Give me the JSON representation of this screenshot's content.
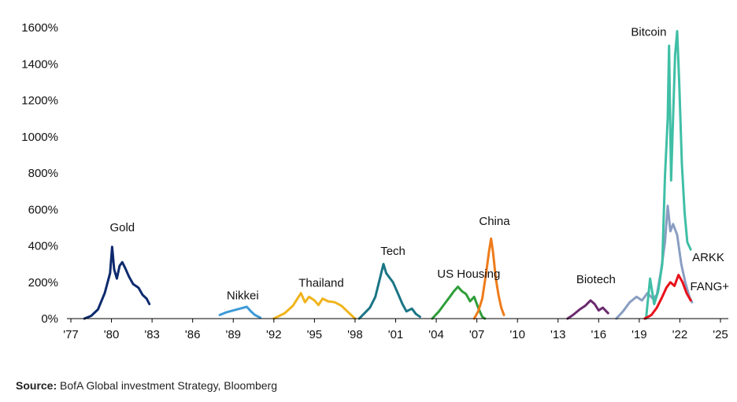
{
  "chart_data": {
    "type": "line",
    "x_tick_labels": [
      "'77",
      "'80",
      "'83",
      "'86",
      "'89",
      "'92",
      "'95",
      "'98",
      "'01",
      "'04",
      "'07",
      "'10",
      "'13",
      "'16",
      "'19",
      "'22",
      "'25"
    ],
    "y_tick_labels": [
      "0%",
      "200%",
      "400%",
      "600%",
      "800%",
      "1000%",
      "1200%",
      "1400%",
      "1600%"
    ],
    "xlim": [
      1977,
      2025
    ],
    "ylim": [
      0,
      1600
    ],
    "grid": false,
    "series": [
      {
        "name": "Gold",
        "color": "#0e2a6e",
        "label_at": [
          1980.8,
          480
        ],
        "points": [
          [
            1978,
            0
          ],
          [
            1978.5,
            15
          ],
          [
            1979,
            50
          ],
          [
            1979.5,
            140
          ],
          [
            1979.9,
            250
          ],
          [
            1980.05,
            395
          ],
          [
            1980.2,
            270
          ],
          [
            1980.4,
            220
          ],
          [
            1980.6,
            290
          ],
          [
            1980.8,
            310
          ],
          [
            1981,
            280
          ],
          [
            1981.3,
            230
          ],
          [
            1981.6,
            190
          ],
          [
            1982,
            170
          ],
          [
            1982.3,
            130
          ],
          [
            1982.6,
            110
          ],
          [
            1982.8,
            80
          ]
        ]
      },
      {
        "name": "Nikkei",
        "color": "#3d9ad8",
        "label_at": [
          1989.7,
          105
        ],
        "points": [
          [
            1988,
            20
          ],
          [
            1988.5,
            35
          ],
          [
            1989,
            45
          ],
          [
            1989.5,
            55
          ],
          [
            1990,
            65
          ],
          [
            1990.3,
            40
          ],
          [
            1990.6,
            20
          ],
          [
            1991,
            5
          ]
        ]
      },
      {
        "name": "Thailand",
        "color": "#f0b41c",
        "label_at": [
          1995.5,
          175
        ],
        "points": [
          [
            1992,
            0
          ],
          [
            1992.8,
            30
          ],
          [
            1993.4,
            70
          ],
          [
            1994,
            140
          ],
          [
            1994.3,
            90
          ],
          [
            1994.6,
            120
          ],
          [
            1995,
            100
          ],
          [
            1995.3,
            75
          ],
          [
            1995.6,
            110
          ],
          [
            1996,
            95
          ],
          [
            1996.5,
            90
          ],
          [
            1997,
            70
          ],
          [
            1997.5,
            35
          ],
          [
            1998,
            0
          ]
        ]
      },
      {
        "name": "Tech",
        "color": "#1a7585",
        "label_at": [
          2000.8,
          350
        ],
        "points": [
          [
            1998.3,
            0
          ],
          [
            1998.7,
            30
          ],
          [
            1999.1,
            60
          ],
          [
            1999.5,
            120
          ],
          [
            1999.8,
            210
          ],
          [
            2000.1,
            300
          ],
          [
            2000.3,
            250
          ],
          [
            2000.6,
            220
          ],
          [
            2000.8,
            200
          ],
          [
            2001.1,
            150
          ],
          [
            2001.5,
            80
          ],
          [
            2001.8,
            40
          ],
          [
            2002.2,
            55
          ],
          [
            2002.5,
            25
          ],
          [
            2002.8,
            10
          ]
        ]
      },
      {
        "name": "US Housing",
        "color": "#2f9e3a",
        "label_at": [
          2006.4,
          225
        ],
        "points": [
          [
            2003.7,
            0
          ],
          [
            2004.2,
            40
          ],
          [
            2004.6,
            80
          ],
          [
            2005,
            120
          ],
          [
            2005.3,
            150
          ],
          [
            2005.6,
            175
          ],
          [
            2005.9,
            150
          ],
          [
            2006.2,
            135
          ],
          [
            2006.5,
            95
          ],
          [
            2006.8,
            120
          ],
          [
            2007.1,
            60
          ],
          [
            2007.4,
            10
          ],
          [
            2007.6,
            0
          ]
        ]
      },
      {
        "name": "China",
        "color": "#ef7b1a",
        "label_at": [
          2008.3,
          515
        ],
        "points": [
          [
            2006.8,
            0
          ],
          [
            2007.1,
            40
          ],
          [
            2007.4,
            110
          ],
          [
            2007.7,
            260
          ],
          [
            2007.9,
            370
          ],
          [
            2008.05,
            440
          ],
          [
            2008.2,
            360
          ],
          [
            2008.4,
            220
          ],
          [
            2008.6,
            130
          ],
          [
            2008.8,
            60
          ],
          [
            2009,
            20
          ]
        ]
      },
      {
        "name": "Biotech",
        "color": "#6b2a6e",
        "label_at": [
          2015.8,
          195
        ],
        "points": [
          [
            2013.7,
            0
          ],
          [
            2014.1,
            20
          ],
          [
            2014.6,
            50
          ],
          [
            2015,
            70
          ],
          [
            2015.4,
            100
          ],
          [
            2015.7,
            80
          ],
          [
            2016,
            45
          ],
          [
            2016.3,
            60
          ],
          [
            2016.7,
            30
          ]
        ]
      },
      {
        "name": "ARKK",
        "color": "#8a9ec2",
        "label_at": [
          2024.1,
          315
        ],
        "points": [
          [
            2017.3,
            0
          ],
          [
            2017.8,
            40
          ],
          [
            2018.3,
            90
          ],
          [
            2018.8,
            120
          ],
          [
            2019.2,
            100
          ],
          [
            2019.6,
            140
          ],
          [
            2020,
            110
          ],
          [
            2020.3,
            130
          ],
          [
            2020.6,
            260
          ],
          [
            2020.9,
            420
          ],
          [
            2021.1,
            620
          ],
          [
            2021.3,
            480
          ],
          [
            2021.5,
            520
          ],
          [
            2021.8,
            460
          ],
          [
            2022.1,
            300
          ],
          [
            2022.4,
            200
          ],
          [
            2022.7,
            120
          ],
          [
            2022.9,
            90
          ]
        ]
      },
      {
        "name": "Bitcoin",
        "color": "#3fbfa6",
        "label_at": [
          2019.7,
          1555
        ],
        "points": [
          [
            2019.5,
            0
          ],
          [
            2019.8,
            220
          ],
          [
            2020.1,
            80
          ],
          [
            2020.4,
            150
          ],
          [
            2020.7,
            300
          ],
          [
            2020.9,
            780
          ],
          [
            2021.1,
            1100
          ],
          [
            2021.2,
            1500
          ],
          [
            2021.35,
            760
          ],
          [
            2021.5,
            1100
          ],
          [
            2021.65,
            1450
          ],
          [
            2021.8,
            1580
          ],
          [
            2021.95,
            1300
          ],
          [
            2022.15,
            850
          ],
          [
            2022.35,
            580
          ],
          [
            2022.55,
            420
          ],
          [
            2022.8,
            380
          ]
        ]
      },
      {
        "name": "FANG+",
        "color": "#e8111a",
        "label_at": [
          2024.2,
          155
        ],
        "points": [
          [
            2019.4,
            0
          ],
          [
            2019.9,
            20
          ],
          [
            2020.3,
            60
          ],
          [
            2020.7,
            120
          ],
          [
            2021,
            170
          ],
          [
            2021.3,
            200
          ],
          [
            2021.6,
            180
          ],
          [
            2021.9,
            240
          ],
          [
            2022.2,
            200
          ],
          [
            2022.5,
            140
          ],
          [
            2022.8,
            100
          ]
        ]
      }
    ]
  },
  "source": {
    "label": "Source:",
    "text": " BofA Global investment Strategy, Bloomberg"
  }
}
